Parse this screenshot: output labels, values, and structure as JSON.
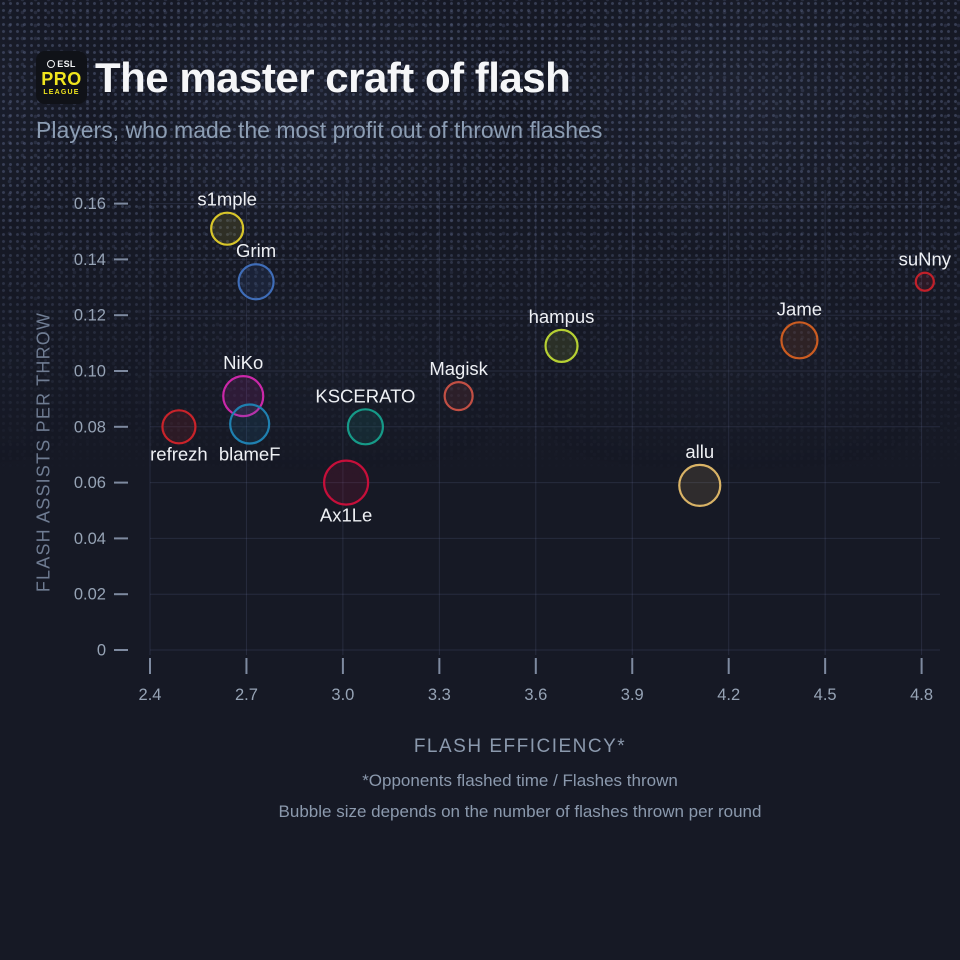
{
  "header": {
    "logo": {
      "line1": "ESL",
      "line2": "PRO",
      "line3": "LEAGUE"
    },
    "title": "The master craft of flash",
    "subtitle": "Players, who made the most profit out of thrown flashes"
  },
  "chart_data": {
    "type": "scatter",
    "title": "The master craft of flash",
    "xlabel": "FLASH EFFICIENCY*",
    "ylabel": "FLASH ASSISTS PER THROW",
    "footnote_flash_efficiency": "*Opponents flashed time / Flashes thrown",
    "footnote_bubble_size": "Bubble size depends on the number of flashes thrown per round",
    "xlim": [
      2.4,
      4.8
    ],
    "ylim": [
      0,
      0.16
    ],
    "grid": true,
    "legend": "none",
    "x_ticks": [
      {
        "v": 2.4,
        "label": "2.4"
      },
      {
        "v": 2.7,
        "label": "2.7"
      },
      {
        "v": 3.0,
        "label": "3.0"
      },
      {
        "v": 3.3,
        "label": "3.3"
      },
      {
        "v": 3.6,
        "label": "3.6"
      },
      {
        "v": 3.9,
        "label": "3.9"
      },
      {
        "v": 4.2,
        "label": "4.2"
      },
      {
        "v": 4.5,
        "label": "4.5"
      },
      {
        "v": 4.8,
        "label": "4.8"
      }
    ],
    "y_ticks": [
      {
        "v": 0,
        "label": "0"
      },
      {
        "v": 0.02,
        "label": "0.02"
      },
      {
        "v": 0.04,
        "label": "0.04"
      },
      {
        "v": 0.06,
        "label": "0.06"
      },
      {
        "v": 0.08,
        "label": "0.08"
      },
      {
        "v": 0.1,
        "label": "0.10"
      },
      {
        "v": 0.12,
        "label": "0.12"
      },
      {
        "v": 0.14,
        "label": "0.14"
      },
      {
        "v": 0.16,
        "label": "0.16"
      }
    ],
    "points": [
      {
        "name": "s1mple",
        "x": 2.64,
        "y": 0.151,
        "r": 16,
        "color": "#d8c62a",
        "label_pos": "above"
      },
      {
        "name": "Grim",
        "x": 2.73,
        "y": 0.132,
        "r": 17.5,
        "color": "#3f6db8",
        "label_pos": "above"
      },
      {
        "name": "refrezh",
        "x": 2.49,
        "y": 0.08,
        "r": 16.5,
        "color": "#c9232a",
        "label_pos": "below"
      },
      {
        "name": "NiKo",
        "x": 2.69,
        "y": 0.091,
        "r": 20,
        "color": "#cb28a9",
        "label_pos": "above"
      },
      {
        "name": "KSCERATO",
        "x": 3.07,
        "y": 0.08,
        "r": 17.5,
        "color": "#169a88",
        "label_pos": "above"
      },
      {
        "name": "Ax1Le",
        "x": 3.01,
        "y": 0.06,
        "r": 22,
        "color": "#c60f3a",
        "label_pos": "below"
      },
      {
        "name": "blameF",
        "x": 2.71,
        "y": 0.081,
        "r": 19.5,
        "color": "#1f80b0",
        "label_pos": "below"
      },
      {
        "name": "Magisk",
        "x": 3.36,
        "y": 0.091,
        "r": 14,
        "color": "#c24f44",
        "label_pos": "above"
      },
      {
        "name": "hampus",
        "x": 3.68,
        "y": 0.109,
        "r": 16,
        "color": "#b6d033",
        "label_pos": "above"
      },
      {
        "name": "allu",
        "x": 4.11,
        "y": 0.059,
        "r": 20.5,
        "color": "#d9b366",
        "label_pos": "above"
      },
      {
        "name": "Jame",
        "x": 4.42,
        "y": 0.111,
        "r": 18,
        "color": "#cb5c21",
        "label_pos": "above"
      },
      {
        "name": "suNny",
        "x": 4.81,
        "y": 0.132,
        "r": 9,
        "color": "#c1202a",
        "label_pos": "above"
      }
    ]
  },
  "style_colors": {
    "background": "#161925",
    "title": "#f5f6f8",
    "subtitle": "#8c9db3",
    "gridline": "rgba(130,145,195,0.16)",
    "tick_mark": "#7e8aa0",
    "tick_label": "#96a3b5",
    "axis_title": "#8b99ad",
    "point_label": "#eef0f4",
    "logo_yellow": "#f0e51e"
  }
}
